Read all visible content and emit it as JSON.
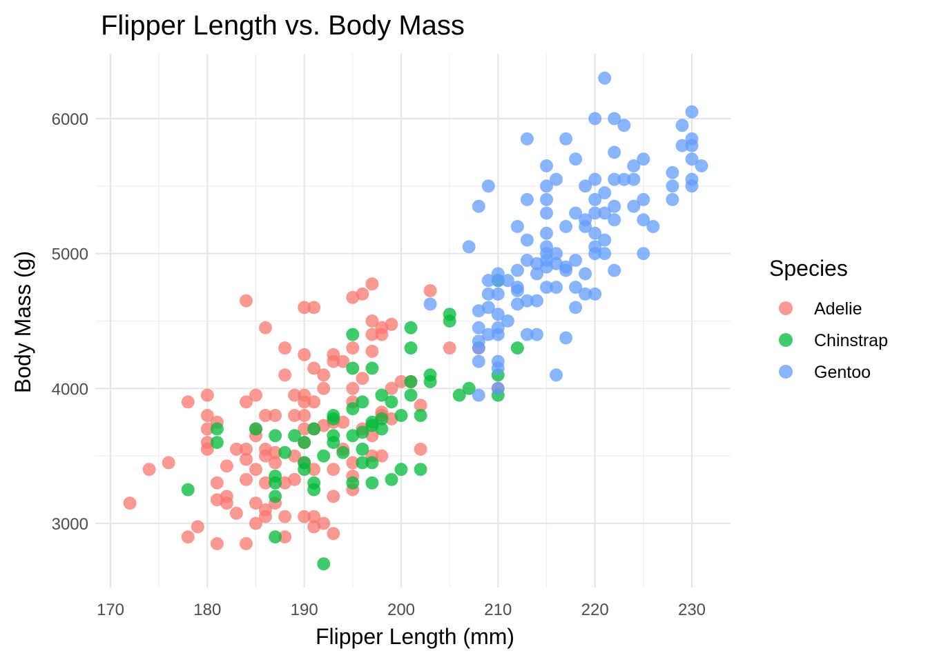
{
  "colors": {
    "Adelie": "#F8766D",
    "Chinstrap": "#00BA38",
    "Gentoo": "#619CFF",
    "grid": "#e6e6e6",
    "tick_text": "#4d4d4d"
  },
  "chart_data": {
    "type": "scatter",
    "title": "Flipper Length vs. Body Mass",
    "xlabel": "Flipper Length (mm)",
    "ylabel": "Body Mass (g)",
    "xlim": [
      170,
      232
    ],
    "ylim": [
      2600,
      6400
    ],
    "x_ticks": [
      170,
      180,
      190,
      200,
      210,
      220,
      230
    ],
    "y_ticks": [
      3000,
      4000,
      5000,
      6000
    ],
    "x_minor_ticks": [
      175,
      185,
      195,
      205,
      215,
      225
    ],
    "y_minor_ticks": [
      3500,
      4500,
      5500
    ],
    "grid": true,
    "legend": {
      "title": "Species",
      "position": "right",
      "entries": [
        "Adelie",
        "Chinstrap",
        "Gentoo"
      ]
    },
    "series": [
      {
        "name": "Adelie",
        "points": [
          [
            172,
            3150
          ],
          [
            174,
            3400
          ],
          [
            176,
            3450
          ],
          [
            178,
            3900
          ],
          [
            178,
            2900
          ],
          [
            179,
            2975
          ],
          [
            180,
            3950
          ],
          [
            180,
            3800
          ],
          [
            180,
            3600
          ],
          [
            180,
            3550
          ],
          [
            180,
            3700
          ],
          [
            181,
            3750
          ],
          [
            181,
            3300
          ],
          [
            181,
            3175
          ],
          [
            181,
            2850
          ],
          [
            182,
            3425
          ],
          [
            182,
            3200
          ],
          [
            182,
            3150
          ],
          [
            183,
            3550
          ],
          [
            183,
            3075
          ],
          [
            184,
            4650
          ],
          [
            184,
            3900
          ],
          [
            184,
            3550
          ],
          [
            184,
            3475
          ],
          [
            184,
            3325
          ],
          [
            184,
            2850
          ],
          [
            185,
            3950
          ],
          [
            185,
            3700
          ],
          [
            185,
            3650
          ],
          [
            185,
            3400
          ],
          [
            185,
            3150
          ],
          [
            185,
            3000
          ],
          [
            186,
            4450
          ],
          [
            186,
            3800
          ],
          [
            186,
            3550
          ],
          [
            186,
            3500
          ],
          [
            186,
            3300
          ],
          [
            186,
            3100
          ],
          [
            186,
            3050
          ],
          [
            187,
            3800
          ],
          [
            187,
            3525
          ],
          [
            187,
            3450
          ],
          [
            187,
            3150
          ],
          [
            188,
            4300
          ],
          [
            188,
            4100
          ],
          [
            188,
            3300
          ],
          [
            188,
            3050
          ],
          [
            188,
            2900
          ],
          [
            189,
            3950
          ],
          [
            189,
            3800
          ],
          [
            189,
            3500
          ],
          [
            189,
            3325
          ],
          [
            190,
            4600
          ],
          [
            190,
            4250
          ],
          [
            190,
            3950
          ],
          [
            190,
            3900
          ],
          [
            190,
            3800
          ],
          [
            190,
            3700
          ],
          [
            190,
            3600
          ],
          [
            190,
            3450
          ],
          [
            190,
            3050
          ],
          [
            191,
            4600
          ],
          [
            191,
            4150
          ],
          [
            191,
            3900
          ],
          [
            191,
            3700
          ],
          [
            191,
            3400
          ],
          [
            191,
            3050
          ],
          [
            191,
            2975
          ],
          [
            192,
            4100
          ],
          [
            192,
            4000
          ],
          [
            192,
            3725
          ],
          [
            192,
            3000
          ],
          [
            193,
            4250
          ],
          [
            193,
            4200
          ],
          [
            193,
            3750
          ],
          [
            193,
            3400
          ],
          [
            193,
            3200
          ],
          [
            193,
            2925
          ],
          [
            194,
            4200
          ],
          [
            194,
            3750
          ],
          [
            194,
            3550
          ],
          [
            195,
            4675
          ],
          [
            195,
            4300
          ],
          [
            195,
            4000
          ],
          [
            195,
            3900
          ],
          [
            195,
            3450
          ],
          [
            195,
            3350
          ],
          [
            195,
            3250
          ],
          [
            196,
            4700
          ],
          [
            196,
            4075
          ],
          [
            196,
            3700
          ],
          [
            197,
            4775
          ],
          [
            197,
            4500
          ],
          [
            197,
            4400
          ],
          [
            197,
            4275
          ],
          [
            197,
            3650
          ],
          [
            197,
            3500
          ],
          [
            198,
            4450
          ],
          [
            198,
            4400
          ],
          [
            198,
            3825
          ],
          [
            198,
            3800
          ],
          [
            198,
            3500
          ],
          [
            199,
            4475
          ],
          [
            199,
            4000
          ],
          [
            199,
            3775
          ],
          [
            200,
            4050
          ],
          [
            201,
            4050
          ],
          [
            202,
            3875
          ],
          [
            202,
            3550
          ],
          [
            203,
            4725
          ],
          [
            205,
            4300
          ],
          [
            208,
            4300
          ],
          [
            210,
            4000
          ]
        ]
      },
      {
        "name": "Chinstrap",
        "points": [
          [
            178,
            3250
          ],
          [
            181,
            3700
          ],
          [
            181,
            3600
          ],
          [
            185,
            3700
          ],
          [
            187,
            3650
          ],
          [
            187,
            3350
          ],
          [
            187,
            3300
          ],
          [
            187,
            3200
          ],
          [
            187,
            2900
          ],
          [
            188,
            3525
          ],
          [
            189,
            3650
          ],
          [
            190,
            3600
          ],
          [
            190,
            3450
          ],
          [
            190,
            3400
          ],
          [
            191,
            3700
          ],
          [
            191,
            3300
          ],
          [
            191,
            3250
          ],
          [
            192,
            3500
          ],
          [
            192,
            2700
          ],
          [
            193,
            3800
          ],
          [
            193,
            3775
          ],
          [
            193,
            3650
          ],
          [
            193,
            3600
          ],
          [
            194,
            3525
          ],
          [
            195,
            4400
          ],
          [
            195,
            4150
          ],
          [
            195,
            3850
          ],
          [
            195,
            3650
          ],
          [
            195,
            3300
          ],
          [
            196,
            3900
          ],
          [
            196,
            3675
          ],
          [
            196,
            3550
          ],
          [
            196,
            3450
          ],
          [
            197,
            4150
          ],
          [
            197,
            3750
          ],
          [
            197,
            3725
          ],
          [
            197,
            3450
          ],
          [
            197,
            3300
          ],
          [
            198,
            3950
          ],
          [
            198,
            3775
          ],
          [
            198,
            3700
          ],
          [
            199,
            3900
          ],
          [
            199,
            3325
          ],
          [
            200,
            3800
          ],
          [
            200,
            3400
          ],
          [
            201,
            4450
          ],
          [
            201,
            4300
          ],
          [
            201,
            4050
          ],
          [
            201,
            3950
          ],
          [
            202,
            3800
          ],
          [
            202,
            3400
          ],
          [
            203,
            4100
          ],
          [
            203,
            4050
          ],
          [
            205,
            4550
          ],
          [
            205,
            4500
          ],
          [
            206,
            3950
          ],
          [
            207,
            4000
          ],
          [
            210,
            4800
          ],
          [
            210,
            4100
          ],
          [
            210,
            3950
          ],
          [
            212,
            4300
          ]
        ]
      },
      {
        "name": "Gentoo",
        "points": [
          [
            203,
            4625
          ],
          [
            207,
            5050
          ],
          [
            208,
            5350
          ],
          [
            208,
            4575
          ],
          [
            208,
            4450
          ],
          [
            208,
            4350
          ],
          [
            208,
            4300
          ],
          [
            208,
            4200
          ],
          [
            208,
            3950
          ],
          [
            209,
            5500
          ],
          [
            209,
            4800
          ],
          [
            209,
            4700
          ],
          [
            209,
            4600
          ],
          [
            209,
            4400
          ],
          [
            210,
            4850
          ],
          [
            210,
            4800
          ],
          [
            210,
            4700
          ],
          [
            210,
            4550
          ],
          [
            210,
            4450
          ],
          [
            210,
            4400
          ],
          [
            210,
            4200
          ],
          [
            210,
            4150
          ],
          [
            210,
            4000
          ],
          [
            211,
            4800
          ],
          [
            211,
            4500
          ],
          [
            212,
            5200
          ],
          [
            212,
            4875
          ],
          [
            212,
            4750
          ],
          [
            212,
            4725
          ],
          [
            212,
            4625
          ],
          [
            213,
            5850
          ],
          [
            213,
            5400
          ],
          [
            213,
            5100
          ],
          [
            213,
            4950
          ],
          [
            213,
            4650
          ],
          [
            213,
            4400
          ],
          [
            214,
            4925
          ],
          [
            214,
            4850
          ],
          [
            214,
            4650
          ],
          [
            214,
            4400
          ],
          [
            215,
            5650
          ],
          [
            215,
            5500
          ],
          [
            215,
            5400
          ],
          [
            215,
            5300
          ],
          [
            215,
            5150
          ],
          [
            215,
            5050
          ],
          [
            215,
            5000
          ],
          [
            215,
            4950
          ],
          [
            215,
            4900
          ],
          [
            215,
            4750
          ],
          [
            216,
            5550
          ],
          [
            216,
            5000
          ],
          [
            216,
            4925
          ],
          [
            216,
            4750
          ],
          [
            216,
            4100
          ],
          [
            217,
            5850
          ],
          [
            217,
            5200
          ],
          [
            217,
            4900
          ],
          [
            217,
            4875
          ],
          [
            217,
            4375
          ],
          [
            218,
            5700
          ],
          [
            218,
            5300
          ],
          [
            218,
            4950
          ],
          [
            218,
            4750
          ],
          [
            218,
            4600
          ],
          [
            219,
            5500
          ],
          [
            219,
            5250
          ],
          [
            219,
            5200
          ],
          [
            219,
            4850
          ],
          [
            219,
            4700
          ],
          [
            220,
            6000
          ],
          [
            220,
            5550
          ],
          [
            220,
            5400
          ],
          [
            220,
            5300
          ],
          [
            220,
            5150
          ],
          [
            220,
            5050
          ],
          [
            220,
            5000
          ],
          [
            220,
            4700
          ],
          [
            221,
            6300
          ],
          [
            221,
            5450
          ],
          [
            221,
            5300
          ],
          [
            221,
            5100
          ],
          [
            221,
            5000
          ],
          [
            222,
            6000
          ],
          [
            222,
            5750
          ],
          [
            222,
            5550
          ],
          [
            222,
            5350
          ],
          [
            222,
            5250
          ],
          [
            222,
            4875
          ],
          [
            223,
            5950
          ],
          [
            223,
            5550
          ],
          [
            224,
            5650
          ],
          [
            224,
            5550
          ],
          [
            224,
            5350
          ],
          [
            225,
            5700
          ],
          [
            225,
            5400
          ],
          [
            225,
            5250
          ],
          [
            225,
            5000
          ],
          [
            226,
            5200
          ],
          [
            228,
            5600
          ],
          [
            228,
            5500
          ],
          [
            228,
            5400
          ],
          [
            229,
            5950
          ],
          [
            229,
            5800
          ],
          [
            230,
            6050
          ],
          [
            230,
            5850
          ],
          [
            230,
            5800
          ],
          [
            230,
            5700
          ],
          [
            230,
            5550
          ],
          [
            230,
            5500
          ],
          [
            231,
            5650
          ]
        ]
      }
    ]
  }
}
